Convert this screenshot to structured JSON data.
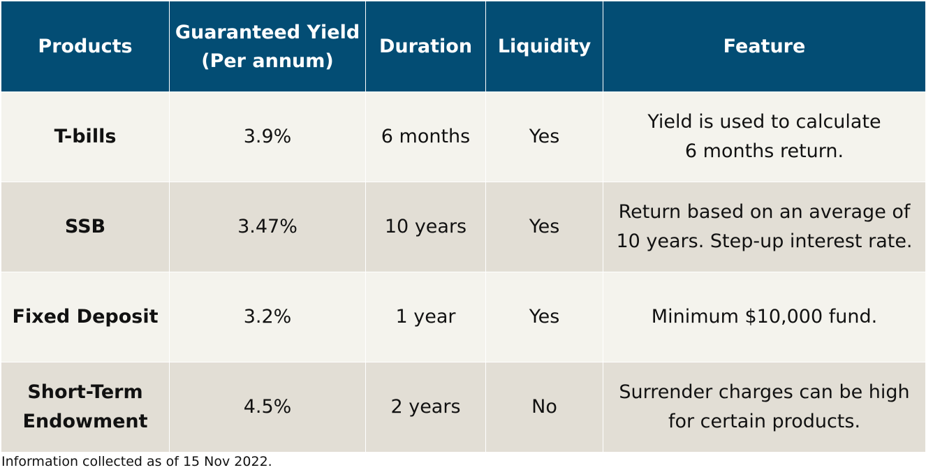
{
  "colors": {
    "header_bg": "#034d74",
    "header_text": "#ffffff",
    "row_light": "#f4f3ed",
    "row_dark": "#e2ded5"
  },
  "table": {
    "headers": {
      "products": "Products",
      "yield_line1": "Guaranteed Yield",
      "yield_line2": "(Per annum)",
      "duration": "Duration",
      "liquidity": "Liquidity",
      "feature": "Feature"
    },
    "rows": [
      {
        "product": "T-bills",
        "yield": "3.9%",
        "duration": "6 months",
        "liquidity": "Yes",
        "feature_line1": "Yield is used to calculate",
        "feature_line2": "6 months return."
      },
      {
        "product": "SSB",
        "yield": "3.47%",
        "duration": "10 years",
        "liquidity": "Yes",
        "feature_line1": "Return based on an average of",
        "feature_line2": "10 years. Step-up interest rate."
      },
      {
        "product": "Fixed Deposit",
        "yield": "3.2%",
        "duration": "1 year",
        "liquidity": "Yes",
        "feature_line1": "Minimum $10,000 fund.",
        "feature_line2": ""
      },
      {
        "product_line1": "Short-Term",
        "product_line2": "Endowment",
        "yield": "4.5%",
        "duration": "2 years",
        "liquidity": "No",
        "feature_line1": "Surrender charges can be high",
        "feature_line2": "for certain products."
      }
    ]
  },
  "footnote": "Information collected as of 15 Nov 2022."
}
